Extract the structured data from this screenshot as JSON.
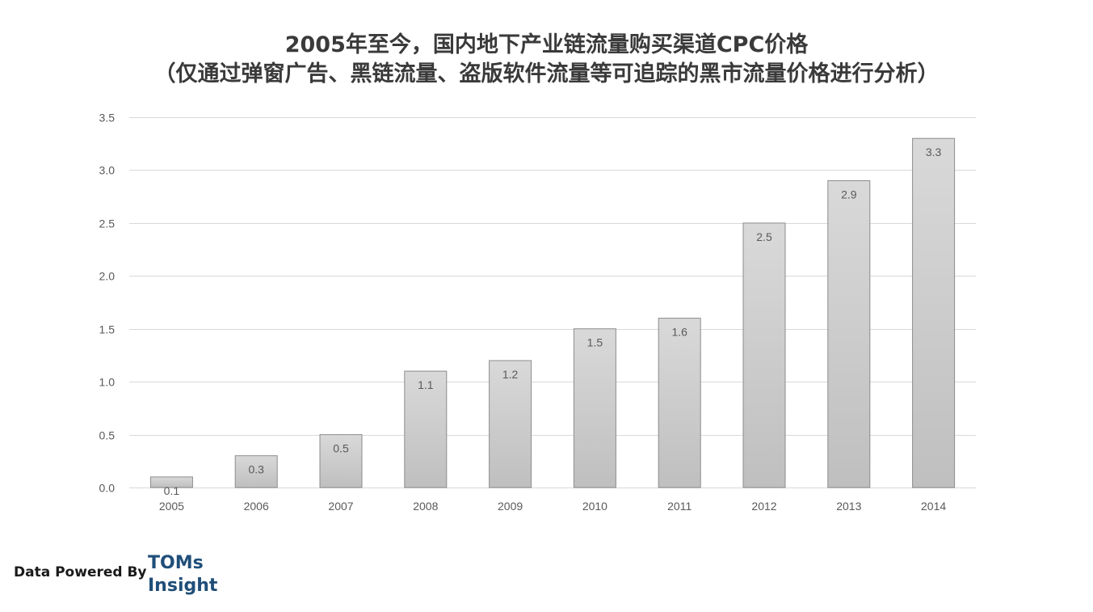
{
  "chart_data": {
    "type": "bar",
    "title": "2005年至今，国内地下产业链流量购买渠道CPC价格",
    "subtitle": "（仅通过弹窗广告、黑链流量、盗版软件流量等可追踪的黑市流量价格进行分析）",
    "categories": [
      "2005",
      "2006",
      "2007",
      "2008",
      "2009",
      "2010",
      "2011",
      "2012",
      "2013",
      "2014"
    ],
    "values": [
      0.1,
      0.3,
      0.5,
      1.1,
      1.2,
      1.5,
      1.6,
      2.5,
      2.9,
      3.3
    ],
    "data_labels": [
      "0.1",
      "0.3",
      "0.5",
      "1.1",
      "1.2",
      "1.5",
      "1.6",
      "2.5",
      "2.9",
      "3.3"
    ],
    "xlabel": "",
    "ylabel": "",
    "ylim": [
      0,
      3.5
    ],
    "yticks": [
      "0.0",
      "0.5",
      "1.0",
      "1.5",
      "2.0",
      "2.5",
      "3.0",
      "3.5"
    ],
    "grid": true,
    "legend": "none",
    "bar_gradient": [
      "#d9d9d9",
      "#bfbfbf"
    ]
  },
  "footer": {
    "powered_by": "Data Powered By",
    "logo_line1": "TOMs",
    "logo_line2": "Insight"
  }
}
